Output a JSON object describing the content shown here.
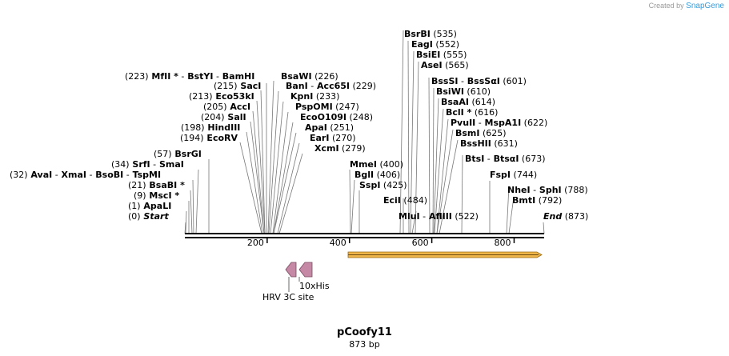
{
  "app": {
    "created_by": "Created by",
    "brand": "SnapGene"
  },
  "map": {
    "name": "pCoofy11",
    "length_text": "873 bp",
    "length_bp": 873,
    "ticks": [
      {
        "bp": 200,
        "label": "200"
      },
      {
        "bp": 400,
        "label": "400"
      },
      {
        "bp": 600,
        "label": "600"
      },
      {
        "bp": 800,
        "label": "800"
      }
    ],
    "sites_left": [
      {
        "parts": [
          {
            "t": "(223)",
            "b": false
          },
          {
            "t": "MfII *",
            "b": true
          },
          {
            "t": "-",
            "b": false
          },
          {
            "t": "BstYI",
            "b": true
          },
          {
            "t": "-",
            "b": false
          },
          {
            "t": "BamHI",
            "b": true
          }
        ]
      },
      {
        "parts": [
          {
            "t": "(215)",
            "b": false
          },
          {
            "t": "SacI",
            "b": true
          }
        ]
      },
      {
        "parts": [
          {
            "t": "(213)",
            "b": false
          },
          {
            "t": "Eco53kI",
            "b": true
          }
        ]
      },
      {
        "parts": [
          {
            "t": "(205)",
            "b": false
          },
          {
            "t": "AccI",
            "b": true
          }
        ]
      },
      {
        "parts": [
          {
            "t": "(204)",
            "b": false
          },
          {
            "t": "SalI",
            "b": true
          }
        ]
      },
      {
        "parts": [
          {
            "t": "(198)",
            "b": false
          },
          {
            "t": "HindIII",
            "b": true
          }
        ]
      },
      {
        "parts": [
          {
            "t": "(194)",
            "b": false
          },
          {
            "t": "EcoRV",
            "b": true
          }
        ]
      },
      {
        "parts": [
          {
            "t": "(57)",
            "b": false
          },
          {
            "t": "BsrGI",
            "b": true
          }
        ]
      },
      {
        "parts": [
          {
            "t": "(34)",
            "b": false
          },
          {
            "t": "SrfI",
            "b": true
          },
          {
            "t": "-",
            "b": false
          },
          {
            "t": "SmaI",
            "b": true
          }
        ]
      },
      {
        "parts": [
          {
            "t": "(32)",
            "b": false
          },
          {
            "t": "AvaI",
            "b": true
          },
          {
            "t": "-",
            "b": false
          },
          {
            "t": "XmaI",
            "b": true
          },
          {
            "t": "-",
            "b": false
          },
          {
            "t": "BsoBI",
            "b": true
          },
          {
            "t": "-",
            "b": false
          },
          {
            "t": "TspMI",
            "b": true
          }
        ]
      },
      {
        "parts": [
          {
            "t": "(21)",
            "b": false
          },
          {
            "t": "BsaBI *",
            "b": true
          }
        ]
      },
      {
        "parts": [
          {
            "t": "(9)",
            "b": false
          },
          {
            "t": "MscI *",
            "b": true
          }
        ]
      },
      {
        "parts": [
          {
            "t": "(1)",
            "b": false
          },
          {
            "t": "ApaLI",
            "b": true
          }
        ]
      },
      {
        "parts": [
          {
            "t": "(0)",
            "b": false
          },
          {
            "t": "Start",
            "b": true,
            "i": true
          }
        ]
      }
    ],
    "sites_mid": [
      {
        "parts": [
          {
            "t": "BsaWI",
            "b": true
          },
          {
            "t": "(226)",
            "b": false
          }
        ]
      },
      {
        "parts": [
          {
            "t": "BanI",
            "b": true
          },
          {
            "t": "-",
            "b": false
          },
          {
            "t": "Acc65I",
            "b": true
          },
          {
            "t": "(229)",
            "b": false
          }
        ]
      },
      {
        "parts": [
          {
            "t": "KpnI",
            "b": true
          },
          {
            "t": "(233)",
            "b": false
          }
        ]
      },
      {
        "parts": [
          {
            "t": "PspOMI",
            "b": true
          },
          {
            "t": "(247)",
            "b": false
          }
        ]
      },
      {
        "parts": [
          {
            "t": "EcoO109I",
            "b": true
          },
          {
            "t": "(248)",
            "b": false
          }
        ]
      },
      {
        "parts": [
          {
            "t": "ApaI",
            "b": true
          },
          {
            "t": "(251)",
            "b": false
          }
        ]
      },
      {
        "parts": [
          {
            "t": "EarI",
            "b": true
          },
          {
            "t": "(270)",
            "b": false
          }
        ]
      },
      {
        "parts": [
          {
            "t": "XcmI",
            "b": true
          },
          {
            "t": "(279)",
            "b": false
          }
        ]
      },
      {
        "parts": [
          {
            "t": "MmeI",
            "b": true
          },
          {
            "t": "(400)",
            "b": false
          }
        ]
      },
      {
        "parts": [
          {
            "t": "BglI",
            "b": true
          },
          {
            "t": "(406)",
            "b": false
          }
        ]
      },
      {
        "parts": [
          {
            "t": "SspI",
            "b": true
          },
          {
            "t": "(425)",
            "b": false
          }
        ]
      }
    ],
    "sites_right": [
      {
        "parts": [
          {
            "t": "BsrBI",
            "b": true
          },
          {
            "t": "(535)",
            "b": false
          }
        ]
      },
      {
        "parts": [
          {
            "t": "EagI",
            "b": true
          },
          {
            "t": "(552)",
            "b": false
          }
        ]
      },
      {
        "parts": [
          {
            "t": "BsiEI",
            "b": true
          },
          {
            "t": "(555)",
            "b": false
          }
        ]
      },
      {
        "parts": [
          {
            "t": "AseI",
            "b": true
          },
          {
            "t": "(565)",
            "b": false
          }
        ]
      },
      {
        "parts": [
          {
            "t": "BssSI",
            "b": true
          },
          {
            "t": "-",
            "b": false
          },
          {
            "t": "BssSαI",
            "b": true
          },
          {
            "t": "(601)",
            "b": false
          }
        ]
      },
      {
        "parts": [
          {
            "t": "BsiWI",
            "b": true
          },
          {
            "t": "(610)",
            "b": false
          }
        ]
      },
      {
        "parts": [
          {
            "t": "BsaAI",
            "b": true
          },
          {
            "t": "(614)",
            "b": false
          }
        ]
      },
      {
        "parts": [
          {
            "t": "BclI *",
            "b": true
          },
          {
            "t": "(616)",
            "b": false
          }
        ]
      },
      {
        "parts": [
          {
            "t": "PvuII",
            "b": true
          },
          {
            "t": "-",
            "b": false
          },
          {
            "t": "MspA1I",
            "b": true
          },
          {
            "t": "(622)",
            "b": false
          }
        ]
      },
      {
        "parts": [
          {
            "t": "BsmI",
            "b": true
          },
          {
            "t": "(625)",
            "b": false
          }
        ]
      },
      {
        "parts": [
          {
            "t": "BssHII",
            "b": true
          },
          {
            "t": "(631)",
            "b": false
          }
        ]
      },
      {
        "parts": [
          {
            "t": "BtsI",
            "b": true
          },
          {
            "t": "-",
            "b": false
          },
          {
            "t": "BtsαI",
            "b": true
          },
          {
            "t": "(673)",
            "b": false
          }
        ]
      },
      {
        "parts": [
          {
            "t": "FspI",
            "b": true
          },
          {
            "t": "(744)",
            "b": false
          }
        ]
      },
      {
        "parts": [
          {
            "t": "NheI",
            "b": true
          },
          {
            "t": "-",
            "b": false
          },
          {
            "t": "SphI",
            "b": true
          },
          {
            "t": "(788)",
            "b": false
          }
        ]
      },
      {
        "parts": [
          {
            "t": "BmtI",
            "b": true
          },
          {
            "t": "(792)",
            "b": false
          }
        ]
      },
      {
        "parts": [
          {
            "t": "EciI",
            "b": true
          },
          {
            "t": "(484)",
            "b": false
          }
        ]
      },
      {
        "parts": [
          {
            "t": "MluI",
            "b": true
          },
          {
            "t": "-",
            "b": false
          },
          {
            "t": "AflIII",
            "b": true
          },
          {
            "t": "(522)",
            "b": false
          }
        ]
      },
      {
        "parts": [
          {
            "t": "End",
            "b": true,
            "i": true
          },
          {
            "t": "(873)",
            "b": false
          }
        ]
      }
    ],
    "features": [
      {
        "name": "10xHis",
        "start": 253,
        "end": 285,
        "direction": "reverse",
        "color": "#c589a6"
      },
      {
        "name": "HRV 3C site",
        "start": 223,
        "end": 253,
        "direction": "reverse",
        "color": "#c589a6"
      },
      {
        "name": "",
        "start": 385,
        "end": 873,
        "direction": "forward",
        "color": "#f0b64a"
      }
    ],
    "colors": {
      "backbone": "#000000",
      "feature_stroke": "#7a4a60"
    }
  }
}
